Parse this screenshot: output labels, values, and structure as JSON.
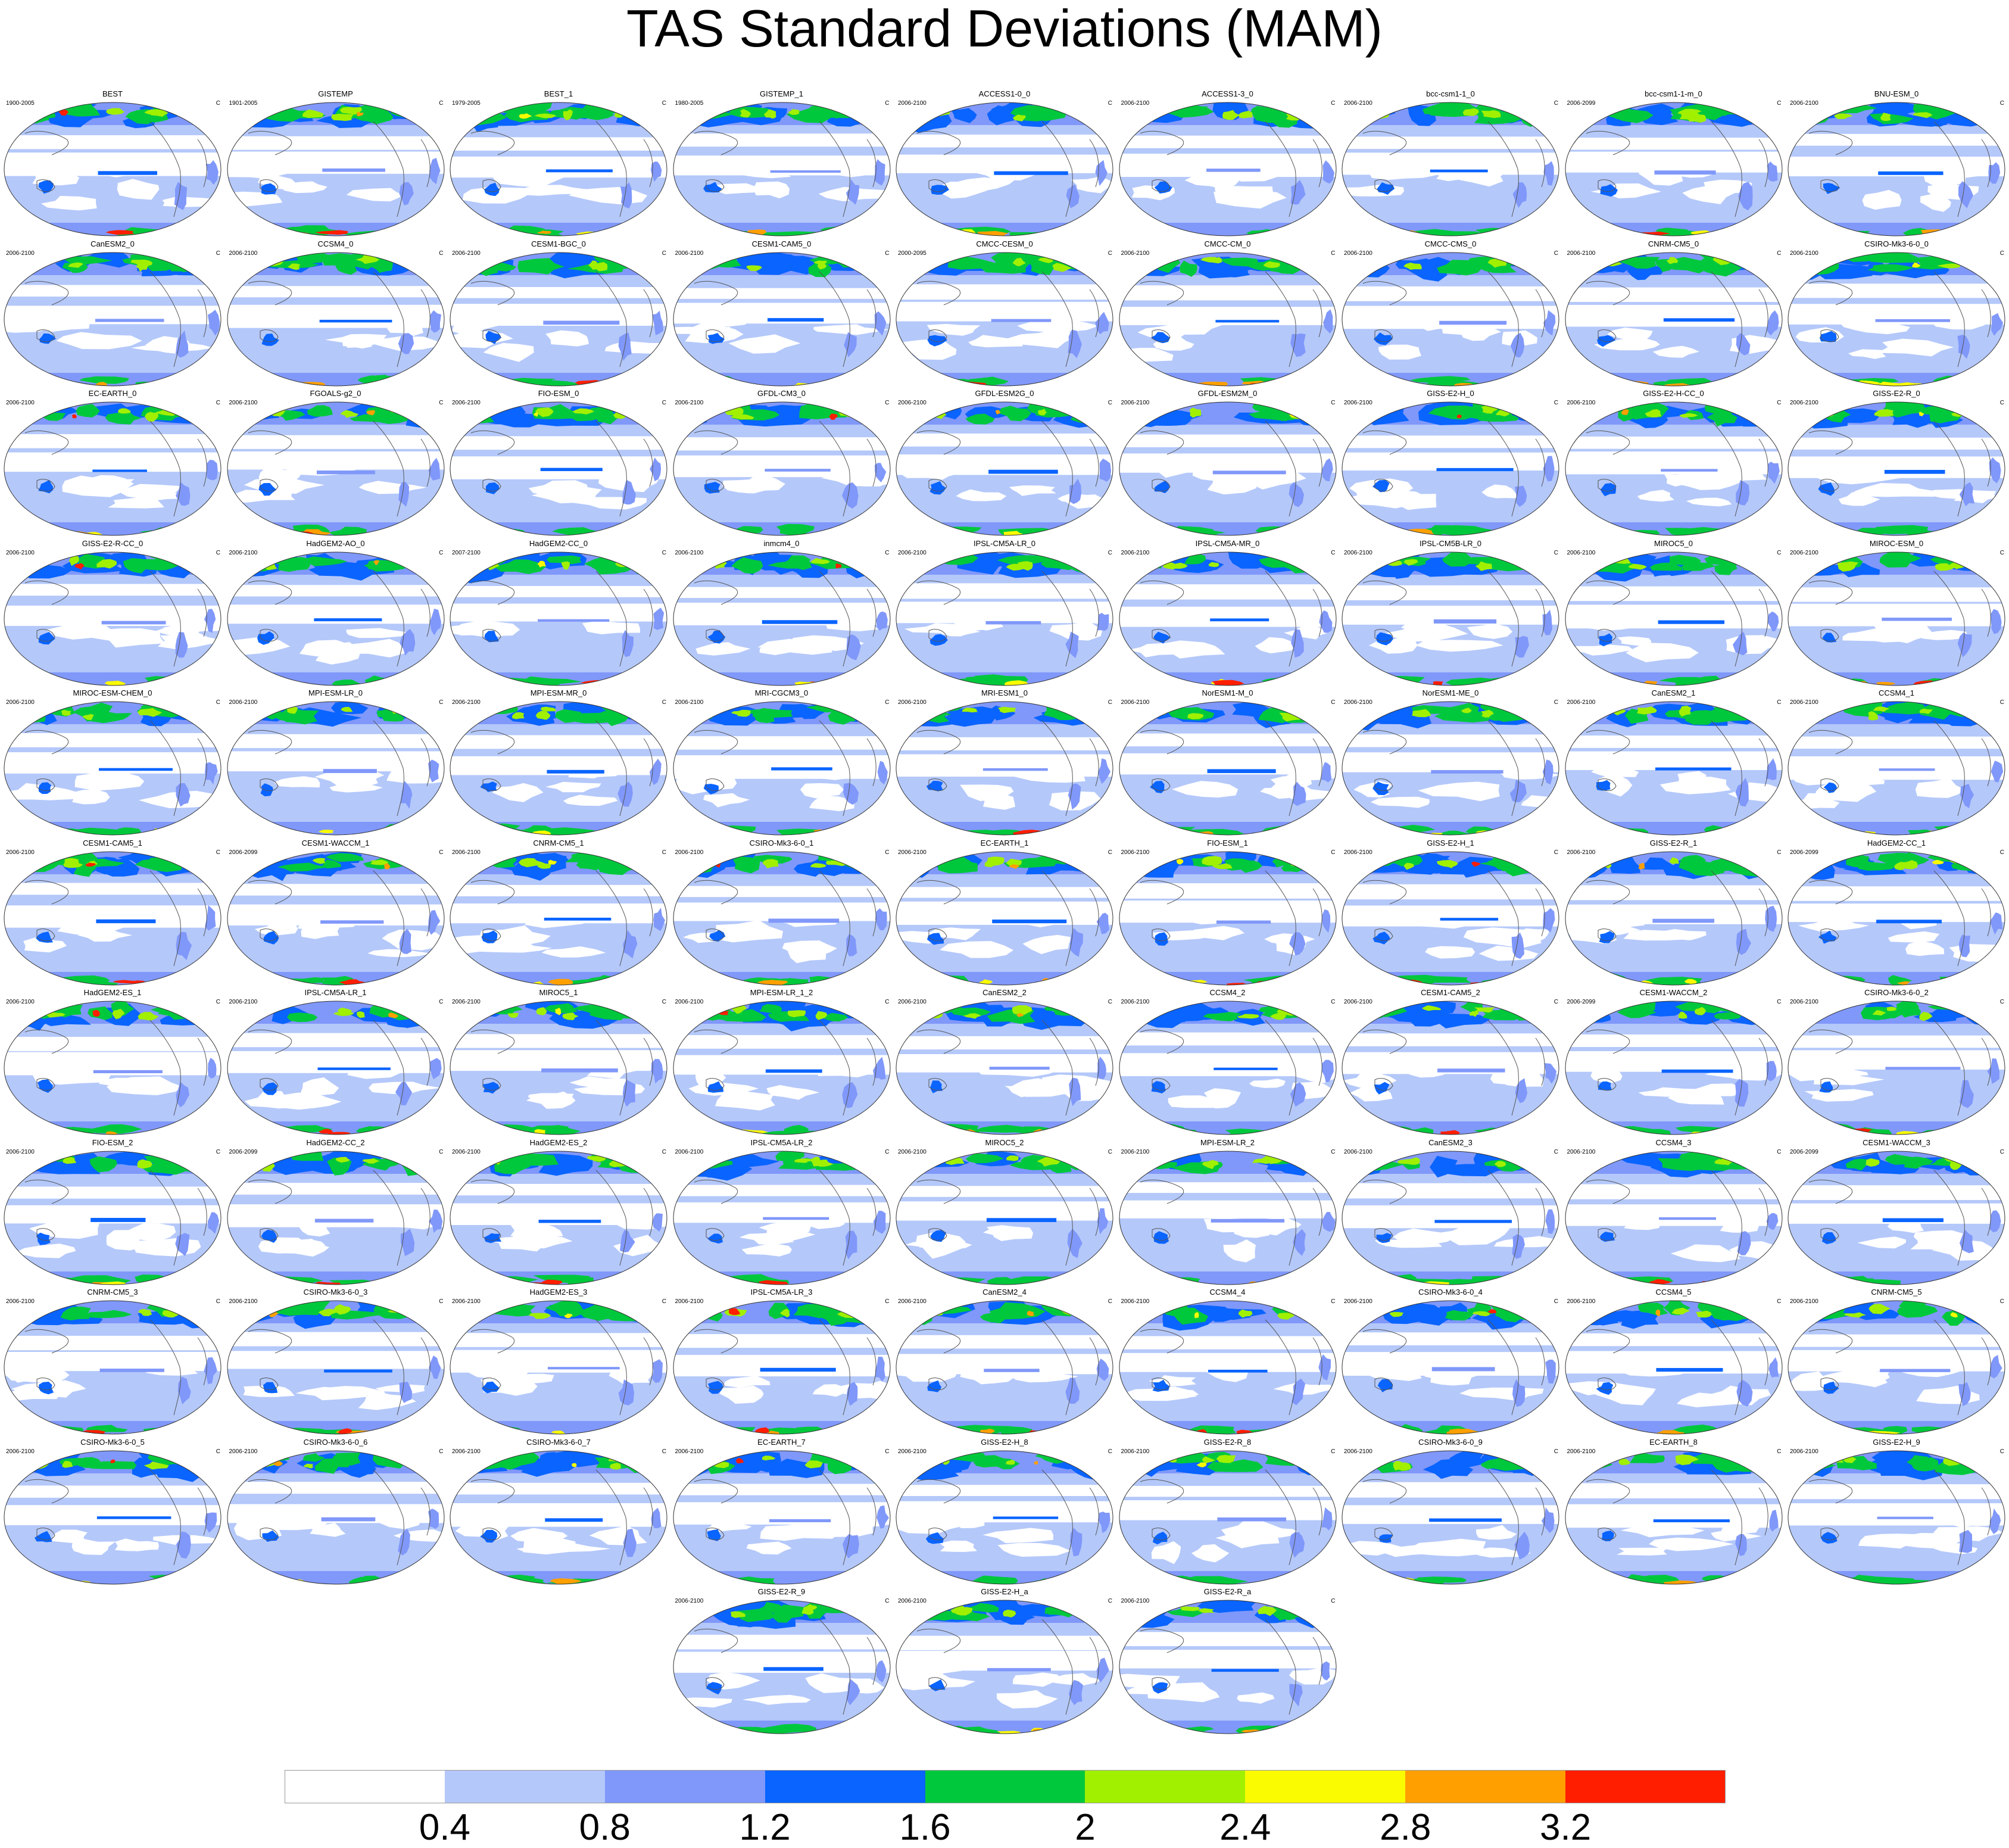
{
  "title": "TAS Standard Deviations (MAM)",
  "units": "C",
  "panels": [
    {
      "name": "BEST",
      "years": "1900-2005"
    },
    {
      "name": "GISTEMP",
      "years": "1901-2005"
    },
    {
      "name": "BEST_1",
      "years": "1979-2005"
    },
    {
      "name": "GISTEMP_1",
      "years": "1980-2005"
    },
    {
      "name": "ACCESS1-0_0",
      "years": "2006-2100"
    },
    {
      "name": "ACCESS1-3_0",
      "years": "2006-2100"
    },
    {
      "name": "bcc-csm1-1_0",
      "years": "2006-2100"
    },
    {
      "name": "bcc-csm1-1-m_0",
      "years": "2006-2099"
    },
    {
      "name": "BNU-ESM_0",
      "years": "2006-2100"
    },
    {
      "name": "CanESM2_0",
      "years": "2006-2100"
    },
    {
      "name": "CCSM4_0",
      "years": "2006-2100"
    },
    {
      "name": "CESM1-BGC_0",
      "years": "2006-2100"
    },
    {
      "name": "CESM1-CAM5_0",
      "years": "2006-2100"
    },
    {
      "name": "CMCC-CESM_0",
      "years": "2000-2095"
    },
    {
      "name": "CMCC-CM_0",
      "years": "2006-2100"
    },
    {
      "name": "CMCC-CMS_0",
      "years": "2006-2100"
    },
    {
      "name": "CNRM-CM5_0",
      "years": "2006-2100"
    },
    {
      "name": "CSIRO-Mk3-6-0_0",
      "years": "2006-2100"
    },
    {
      "name": "EC-EARTH_0",
      "years": "2006-2100"
    },
    {
      "name": "FGOALS-g2_0",
      "years": "2006-2100"
    },
    {
      "name": "FIO-ESM_0",
      "years": "2006-2100"
    },
    {
      "name": "GFDL-CM3_0",
      "years": "2006-2100"
    },
    {
      "name": "GFDL-ESM2G_0",
      "years": "2006-2100"
    },
    {
      "name": "GFDL-ESM2M_0",
      "years": "2006-2100"
    },
    {
      "name": "GISS-E2-H_0",
      "years": "2006-2100"
    },
    {
      "name": "GISS-E2-H-CC_0",
      "years": "2006-2100"
    },
    {
      "name": "GISS-E2-R_0",
      "years": "2006-2100"
    },
    {
      "name": "GISS-E2-R-CC_0",
      "years": "2006-2100"
    },
    {
      "name": "HadGEM2-AO_0",
      "years": "2006-2100"
    },
    {
      "name": "HadGEM2-CC_0",
      "years": "2007-2100"
    },
    {
      "name": "inmcm4_0",
      "years": "2006-2100"
    },
    {
      "name": "IPSL-CM5A-LR_0",
      "years": "2006-2100"
    },
    {
      "name": "IPSL-CM5A-MR_0",
      "years": "2006-2100"
    },
    {
      "name": "IPSL-CM5B-LR_0",
      "years": "2006-2100"
    },
    {
      "name": "MIROC5_0",
      "years": "2006-2100"
    },
    {
      "name": "MIROC-ESM_0",
      "years": "2006-2100"
    },
    {
      "name": "MIROC-ESM-CHEM_0",
      "years": "2006-2100"
    },
    {
      "name": "MPI-ESM-LR_0",
      "years": "2006-2100"
    },
    {
      "name": "MPI-ESM-MR_0",
      "years": "2006-2100"
    },
    {
      "name": "MRI-CGCM3_0",
      "years": "2006-2100"
    },
    {
      "name": "MRI-ESM1_0",
      "years": "2006-2100"
    },
    {
      "name": "NorESM1-M_0",
      "years": "2006-2100"
    },
    {
      "name": "NorESM1-ME_0",
      "years": "2006-2100"
    },
    {
      "name": "CanESM2_1",
      "years": "2006-2100"
    },
    {
      "name": "CCSM4_1",
      "years": "2006-2100"
    },
    {
      "name": "CESM1-CAM5_1",
      "years": "2006-2100"
    },
    {
      "name": "CESM1-WACCM_1",
      "years": "2006-2099"
    },
    {
      "name": "CNRM-CM5_1",
      "years": "2006-2100"
    },
    {
      "name": "CSIRO-Mk3-6-0_1",
      "years": "2006-2100"
    },
    {
      "name": "EC-EARTH_1",
      "years": "2006-2100"
    },
    {
      "name": "FIO-ESM_1",
      "years": "2006-2100"
    },
    {
      "name": "GISS-E2-H_1",
      "years": "2006-2100"
    },
    {
      "name": "GISS-E2-R_1",
      "years": "2006-2100"
    },
    {
      "name": "HadGEM2-CC_1",
      "years": "2006-2099"
    },
    {
      "name": "HadGEM2-ES_1",
      "years": "2006-2100"
    },
    {
      "name": "IPSL-CM5A-LR_1",
      "years": "2006-2100"
    },
    {
      "name": "MIROC5_1",
      "years": "2006-2100"
    },
    {
      "name": "MPI-ESM-LR_1_2",
      "years": "2006-2100"
    },
    {
      "name": "CanESM2_2",
      "years": "2006-2100"
    },
    {
      "name": "CCSM4_2",
      "years": "2006-2100"
    },
    {
      "name": "CESM1-CAM5_2",
      "years": "2006-2100"
    },
    {
      "name": "CESM1-WACCM_2",
      "years": "2006-2099"
    },
    {
      "name": "CSIRO-Mk3-6-0_2",
      "years": "2006-2100"
    },
    {
      "name": "FIO-ESM_2",
      "years": "2006-2100"
    },
    {
      "name": "HadGEM2-CC_2",
      "years": "2006-2099"
    },
    {
      "name": "HadGEM2-ES_2",
      "years": "2006-2100"
    },
    {
      "name": "IPSL-CM5A-LR_2",
      "years": "2006-2100"
    },
    {
      "name": "MIROC5_2",
      "years": "2006-2100"
    },
    {
      "name": "MPI-ESM-LR_2",
      "years": "2006-2100"
    },
    {
      "name": "CanESM2_3",
      "years": "2006-2100"
    },
    {
      "name": "CCSM4_3",
      "years": "2006-2100"
    },
    {
      "name": "CESM1-WACCM_3",
      "years": "2006-2099"
    },
    {
      "name": "CNRM-CM5_3",
      "years": "2006-2100"
    },
    {
      "name": "CSIRO-Mk3-6-0_3",
      "years": "2006-2100"
    },
    {
      "name": "HadGEM2-ES_3",
      "years": "2006-2100"
    },
    {
      "name": "IPSL-CM5A-LR_3",
      "years": "2006-2100"
    },
    {
      "name": "CanESM2_4",
      "years": "2006-2100"
    },
    {
      "name": "CCSM4_4",
      "years": "2006-2100"
    },
    {
      "name": "CSIRO-Mk3-6-0_4",
      "years": "2006-2100"
    },
    {
      "name": "CCSM4_5",
      "years": "2006-2100"
    },
    {
      "name": "CNRM-CM5_5",
      "years": "2006-2100"
    },
    {
      "name": "CSIRO-Mk3-6-0_5",
      "years": "2006-2100"
    },
    {
      "name": "CSIRO-Mk3-6-0_6",
      "years": "2006-2100"
    },
    {
      "name": "CSIRO-Mk3-6-0_7",
      "years": "2006-2100"
    },
    {
      "name": "EC-EARTH_7",
      "years": "2006-2100"
    },
    {
      "name": "GISS-E2-H_8",
      "years": "2006-2100"
    },
    {
      "name": "GISS-E2-R_8",
      "years": "2006-2100"
    },
    {
      "name": "CSIRO-Mk3-6-0_9",
      "years": "2006-2100"
    },
    {
      "name": "EC-EARTH_8",
      "years": "2006-2100"
    },
    {
      "name": "GISS-E2-H_9",
      "years": "2006-2100"
    },
    {
      "name": "GISS-E2-R_9",
      "years": "2006-2100"
    },
    {
      "name": "GISS-E2-H_a",
      "years": "2006-2100"
    },
    {
      "name": "GISS-E2-R_a",
      "years": "2006-2100"
    }
  ],
  "colorbar": {
    "colors": [
      "#ffffff",
      "#b4c8fa",
      "#8098fa",
      "#0a64ff",
      "#00c83c",
      "#a0f000",
      "#fafa00",
      "#ffa000",
      "#ff1e00"
    ],
    "labels": [
      "0.4",
      "0.8",
      "1.2",
      "1.6",
      "2",
      "2.4",
      "2.8",
      "3.2"
    ]
  }
}
